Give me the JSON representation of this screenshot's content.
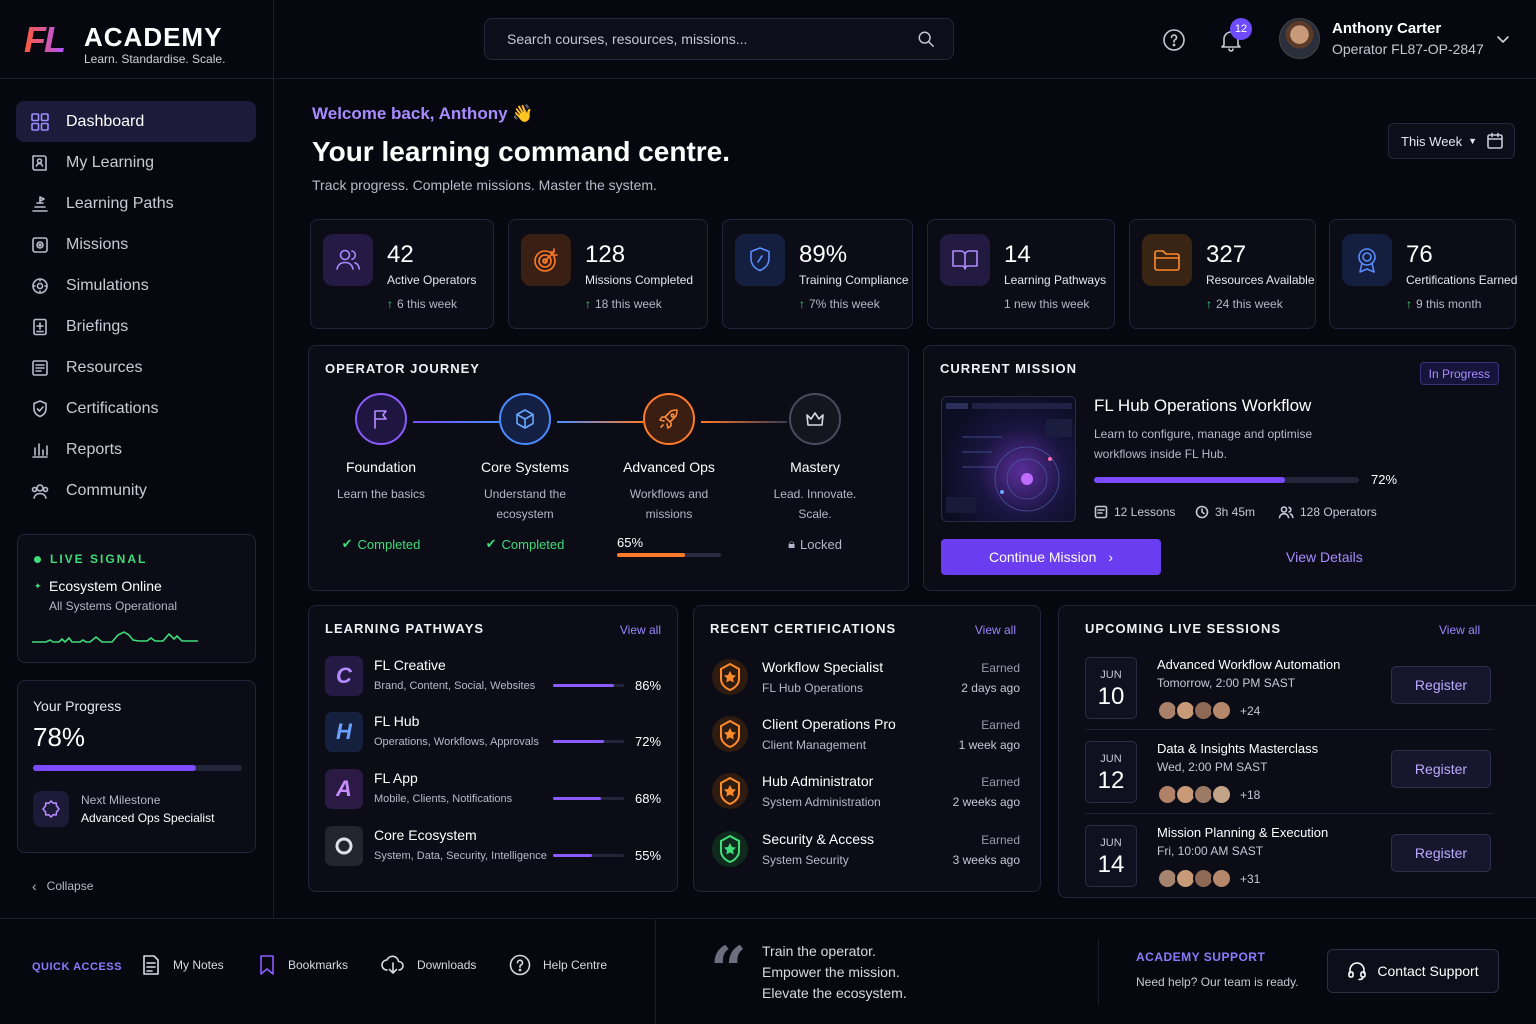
{
  "brand": {
    "mark": "FL",
    "name": "ACADEMY",
    "tagline": "Learn. Standardise. Scale."
  },
  "search": {
    "placeholder": "Search courses, resources, missions..."
  },
  "header": {
    "notifications": "12",
    "user_name": "Anthony Carter",
    "user_id": "Operator FL87-OP-2847"
  },
  "sidebar": {
    "items": [
      {
        "label": "Dashboard",
        "icon": "grid-icon"
      },
      {
        "label": "My Learning",
        "icon": "book-user-icon"
      },
      {
        "label": "Learning Paths",
        "icon": "path-icon"
      },
      {
        "label": "Missions",
        "icon": "target-square-icon"
      },
      {
        "label": "Simulations",
        "icon": "simulation-icon"
      },
      {
        "label": "Briefings",
        "icon": "briefing-icon"
      },
      {
        "label": "Resources",
        "icon": "resources-icon"
      },
      {
        "label": "Certifications",
        "icon": "shield-cert-icon"
      },
      {
        "label": "Reports",
        "icon": "bar-chart-icon"
      },
      {
        "label": "Community",
        "icon": "users-icon"
      }
    ],
    "live": {
      "title": "LIVE SIGNAL",
      "status": "Ecosystem Online",
      "sub": "All Systems Operational"
    },
    "progress": {
      "title": "Your Progress",
      "value": "78%",
      "fraction": 0.78,
      "milestone_label": "Next Milestone",
      "milestone": "Advanced Ops Specialist"
    },
    "collapse": "Collapse"
  },
  "welcome": "Welcome back, Anthony 👋",
  "hero": "Your learning command centre.",
  "subtitle": "Track progress. Complete missions. Master the system.",
  "period": "This Week",
  "stats": [
    {
      "value": "42",
      "label": "Active Operators",
      "delta": "6 this week",
      "up": true,
      "color": "#8a5cff"
    },
    {
      "value": "128",
      "label": "Missions Completed",
      "delta": "18 this week",
      "up": true,
      "color": "#ff7a2a"
    },
    {
      "value": "89%",
      "label": "Training Compliance",
      "delta": "7% this week",
      "up": true,
      "color": "#4a8cff"
    },
    {
      "value": "14",
      "label": "Learning Pathways",
      "delta": "1 new this week",
      "up": false,
      "color": "#9c6cff"
    },
    {
      "value": "327",
      "label": "Resources Available",
      "delta": "24 this week",
      "up": true,
      "color": "#ff8a2a"
    },
    {
      "value": "76",
      "label": "Certifications Earned",
      "delta": "9 this month",
      "up": true,
      "color": "#4a8cff"
    }
  ],
  "journey": {
    "title": "OPERATOR JOURNEY",
    "steps": [
      {
        "name": "Foundation",
        "desc": "Learn the basics",
        "status": "Completed"
      },
      {
        "name": "Core Systems",
        "desc": "Understand the ecosystem",
        "status": "Completed"
      },
      {
        "name": "Advanced Ops",
        "desc": "Workflows and missions",
        "status": "65%",
        "progress": 0.65
      },
      {
        "name": "Mastery",
        "desc": "Lead. Innovate. Scale.",
        "status": "Locked"
      }
    ]
  },
  "mission": {
    "title": "CURRENT MISSION",
    "badge": "In Progress",
    "name": "FL Hub Operations Workflow",
    "desc": "Learn to configure, manage and optimise workflows inside FL Hub.",
    "progress": "72%",
    "fraction": 0.72,
    "lessons": "12 Lessons",
    "duration": "3h 45m",
    "operators": "128 Operators",
    "cta": "Continue Mission",
    "details": "View Details"
  },
  "pathways": {
    "title": "LEARNING PATHWAYS",
    "view_all": "View all",
    "items": [
      {
        "letter": "C",
        "name": "FL Creative",
        "desc": "Brand, Content, Social, Websites",
        "pct": "86%",
        "fraction": 0.86,
        "color": "#b48cff"
      },
      {
        "letter": "H",
        "name": "FL Hub",
        "desc": "Operations, Workflows, Approvals",
        "pct": "72%",
        "fraction": 0.72,
        "color": "#6aa0ff"
      },
      {
        "letter": "A",
        "name": "FL App",
        "desc": "Mobile, Clients, Notifications",
        "pct": "68%",
        "fraction": 0.68,
        "color": "#c88cff"
      },
      {
        "letter": "",
        "name": "Core Ecosystem",
        "desc": "System, Data, Security, Intelligence",
        "pct": "55%",
        "fraction": 0.55,
        "color": "#d8d8e4"
      }
    ]
  },
  "certs": {
    "title": "RECENT CERTIFICATIONS",
    "view_all": "View all",
    "items": [
      {
        "name": "Workflow Specialist",
        "org": "FL Hub Operations",
        "earned": "Earned",
        "when": "2 days ago",
        "color": "#ff8a2a"
      },
      {
        "name": "Client Operations Pro",
        "org": "Client Management",
        "earned": "Earned",
        "when": "1 week ago",
        "color": "#ff8a2a"
      },
      {
        "name": "Hub Administrator",
        "org": "System Administration",
        "earned": "Earned",
        "when": "2 weeks ago",
        "color": "#ff8a2a"
      },
      {
        "name": "Security & Access",
        "org": "System Security",
        "earned": "Earned",
        "when": "3 weeks ago",
        "color": "#3fdc7a"
      }
    ]
  },
  "sessions": {
    "title": "UPCOMING LIVE SESSIONS",
    "view_all": "View all",
    "items": [
      {
        "month": "JUN",
        "day": "10",
        "title": "Advanced Workflow Automation",
        "time": "Tomorrow, 2:00 PM SAST",
        "more": "+24",
        "cta": "Register"
      },
      {
        "month": "JUN",
        "day": "12",
        "title": "Data & Insights Masterclass",
        "time": "Wed, 2:00 PM SAST",
        "more": "+18",
        "cta": "Register"
      },
      {
        "month": "JUN",
        "day": "14",
        "title": "Mission Planning & Execution",
        "time": "Fri, 10:00 AM SAST",
        "more": "+31",
        "cta": "Register"
      }
    ]
  },
  "footer": {
    "quick_access": "QUICK ACCESS",
    "links": [
      {
        "label": "My Notes"
      },
      {
        "label": "Bookmarks"
      },
      {
        "label": "Downloads"
      },
      {
        "label": "Help Centre"
      }
    ],
    "quote": [
      "Train the operator.",
      "Empower the mission.",
      "Elevate the ecosystem."
    ],
    "support_title": "ACADEMY SUPPORT",
    "support_sub": "Need help? Our team is ready.",
    "support_cta": "Contact Support"
  }
}
